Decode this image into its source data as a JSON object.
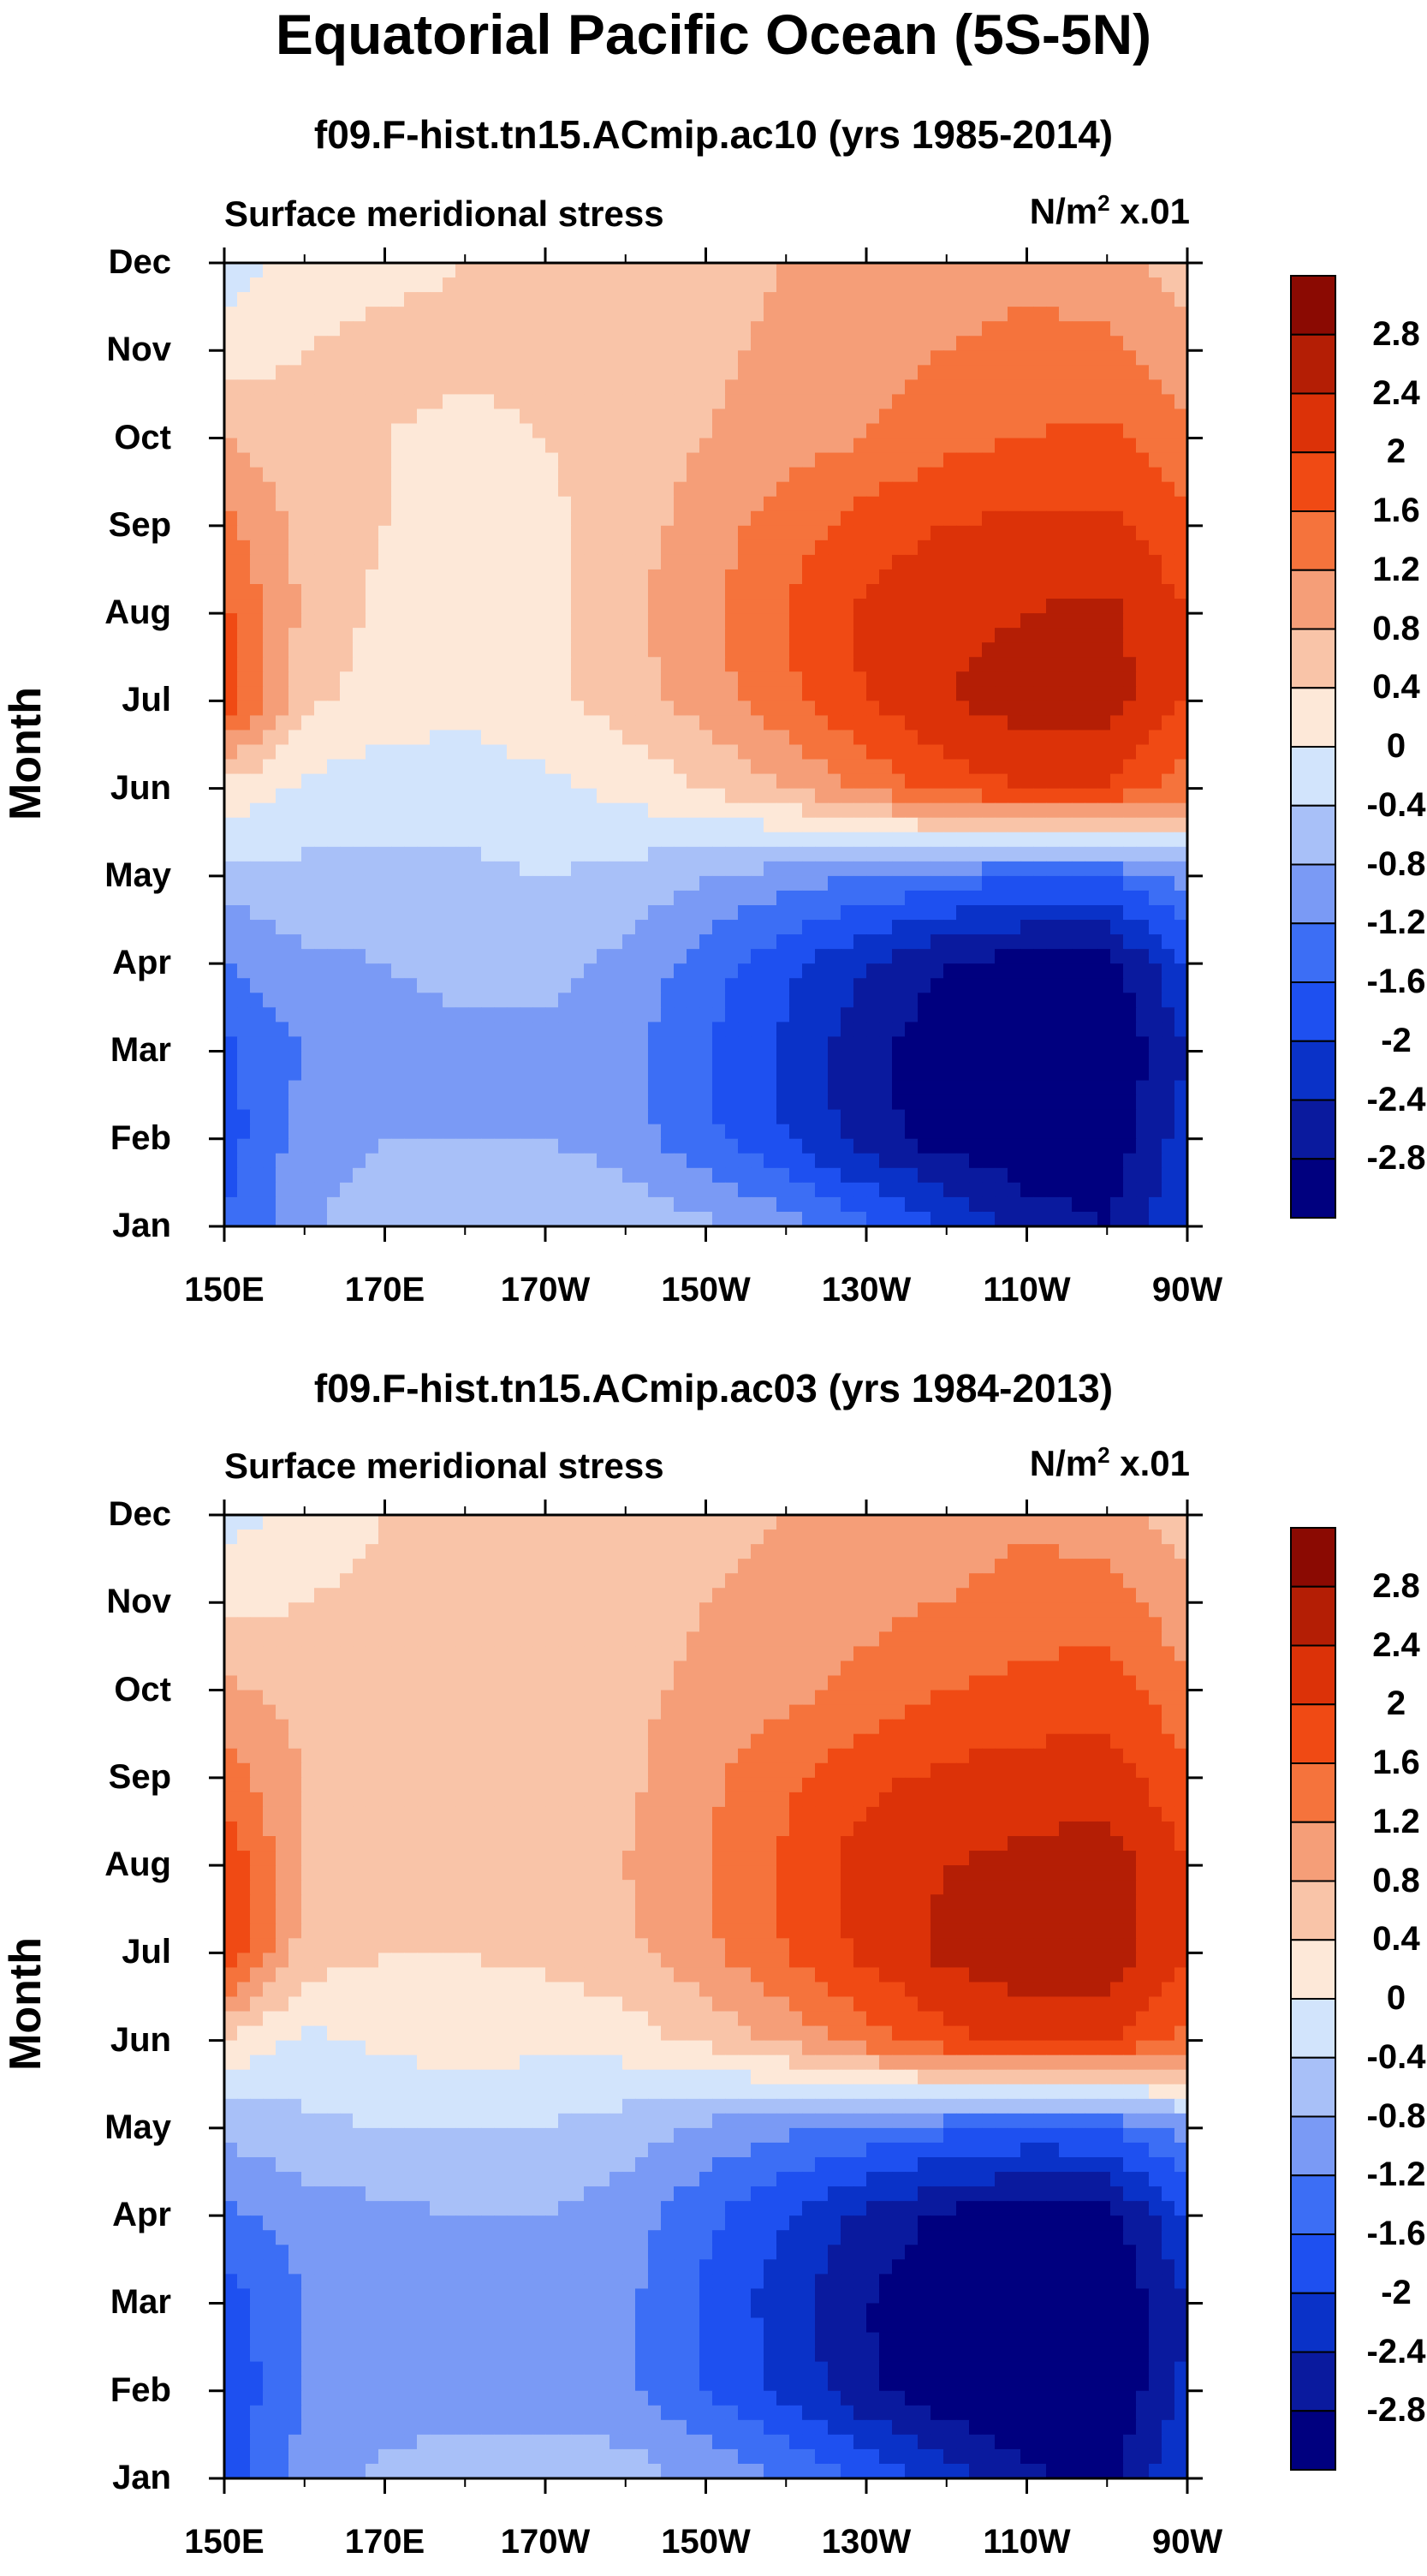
{
  "figure_title": "Equatorial Pacific Ocean (5S-5N)",
  "chart_data": [
    {
      "type": "heatmap",
      "title": "f09.F-hist.tn15.ACmip.ac10 (yrs 1985-2014)",
      "subtitle_left": "Surface meridional stress",
      "units": "N/m",
      "units_sup": "2",
      "units_suffix": " x.01",
      "ylabel": "Month",
      "y_ticks": [
        "Jan",
        "Feb",
        "Mar",
        "Apr",
        "May",
        "Jun",
        "Jul",
        "Aug",
        "Sep",
        "Oct",
        "Nov",
        "Dec"
      ],
      "x_ticks": [
        "150E",
        "170E",
        "170W",
        "150W",
        "130W",
        "110W",
        "90W"
      ],
      "x_range": [
        150,
        270
      ],
      "y_range": [
        1,
        12
      ],
      "colorbar_levels": [
        "2.8",
        "2.4",
        "2",
        "1.6",
        "1.2",
        "0.8",
        "0.4",
        "0",
        "-0.4",
        "-0.8",
        "-1.2",
        "-1.6",
        "-2",
        "-2.4",
        "-2.8"
      ],
      "field": {
        "lon": [
          150,
          160,
          170,
          180,
          190,
          200,
          210,
          220,
          230,
          240,
          250,
          260,
          270
        ],
        "month": [
          1,
          2,
          3,
          4,
          5,
          6,
          7,
          8,
          9,
          10,
          11,
          12
        ],
        "values": [
          [
            -1.6,
            -0.9,
            -0.5,
            -0.4,
            -0.4,
            -0.5,
            -0.7,
            -1.0,
            -1.5,
            -2.0,
            -2.6,
            -2.8,
            -2.0
          ],
          [
            -1.8,
            -1.0,
            -0.8,
            -0.8,
            -0.8,
            -1.0,
            -1.5,
            -2.0,
            -2.6,
            -3.0,
            -3.1,
            -3.1,
            -2.2
          ],
          [
            -1.7,
            -1.2,
            -0.9,
            -0.9,
            -0.9,
            -1.1,
            -1.6,
            -2.1,
            -2.7,
            -3.1,
            -3.2,
            -3.2,
            -2.4
          ],
          [
            -1.2,
            -0.9,
            -0.8,
            -0.7,
            -0.7,
            -0.9,
            -1.4,
            -1.9,
            -2.4,
            -2.8,
            -3.0,
            -3.0,
            -2.0
          ],
          [
            -0.6,
            -0.5,
            -0.5,
            -0.5,
            -0.4,
            -0.5,
            -0.8,
            -1.0,
            -1.2,
            -1.4,
            -1.6,
            -1.6,
            -1.0
          ],
          [
            0.3,
            -0.1,
            -0.2,
            -0.2,
            -0.1,
            0.1,
            0.4,
            0.8,
            1.3,
            1.8,
            2.0,
            2.0,
            1.4
          ],
          [
            1.9,
            0.5,
            0.2,
            0.1,
            0.3,
            0.6,
            1.0,
            1.5,
            2.0,
            2.4,
            2.6,
            2.6,
            2.0
          ],
          [
            1.7,
            0.7,
            0.3,
            0.2,
            0.3,
            0.7,
            1.1,
            1.6,
            2.1,
            2.3,
            2.4,
            2.5,
            2.0
          ],
          [
            1.3,
            0.7,
            0.4,
            0.2,
            0.3,
            0.6,
            1.0,
            1.4,
            1.8,
            2.0,
            2.1,
            2.1,
            1.7
          ],
          [
            0.8,
            0.5,
            0.4,
            0.3,
            0.4,
            0.6,
            0.8,
            1.0,
            1.2,
            1.5,
            1.6,
            1.7,
            1.3
          ],
          [
            0.2,
            0.4,
            0.5,
            0.5,
            0.5,
            0.6,
            0.7,
            0.9,
            1.0,
            1.2,
            1.3,
            1.3,
            0.9
          ],
          [
            -0.2,
            0.2,
            0.3,
            0.4,
            0.4,
            0.5,
            0.6,
            0.8,
            0.9,
            1.0,
            1.1,
            1.0,
            0.6
          ]
        ]
      }
    },
    {
      "type": "heatmap",
      "title": "f09.F-hist.tn15.ACmip.ac03 (yrs 1984-2013)",
      "subtitle_left": "Surface meridional stress",
      "units": "N/m",
      "units_sup": "2",
      "units_suffix": " x.01",
      "ylabel": "Month",
      "y_ticks": [
        "Jan",
        "Feb",
        "Mar",
        "Apr",
        "May",
        "Jun",
        "Jul",
        "Aug",
        "Sep",
        "Oct",
        "Nov",
        "Dec"
      ],
      "x_ticks": [
        "150E",
        "170E",
        "170W",
        "150W",
        "130W",
        "110W",
        "90W"
      ],
      "x_range": [
        150,
        270
      ],
      "y_range": [
        1,
        12
      ],
      "colorbar_levels": [
        "2.8",
        "2.4",
        "2",
        "1.6",
        "1.2",
        "0.8",
        "0.4",
        "0",
        "-0.4",
        "-0.8",
        "-1.2",
        "-1.6",
        "-2",
        "-2.4",
        "-2.8"
      ],
      "field": {
        "lon": [
          150,
          160,
          170,
          180,
          190,
          200,
          210,
          220,
          230,
          240,
          250,
          260,
          270
        ],
        "month": [
          1,
          2,
          3,
          4,
          5,
          6,
          7,
          8,
          9,
          10,
          11,
          12
        ],
        "values": [
          [
            -1.8,
            -1.0,
            -0.7,
            -0.6,
            -0.6,
            -0.6,
            -0.9,
            -1.2,
            -1.7,
            -2.2,
            -2.7,
            -2.9,
            -2.0
          ],
          [
            -1.9,
            -1.2,
            -1.0,
            -1.0,
            -1.0,
            -1.1,
            -1.6,
            -2.1,
            -2.7,
            -3.1,
            -3.2,
            -3.2,
            -2.3
          ],
          [
            -1.8,
            -1.2,
            -1.0,
            -1.0,
            -1.0,
            -1.1,
            -1.7,
            -2.2,
            -2.8,
            -3.1,
            -3.2,
            -3.2,
            -2.4
          ],
          [
            -1.3,
            -1.0,
            -0.9,
            -0.8,
            -0.8,
            -1.0,
            -1.5,
            -2.0,
            -2.5,
            -2.9,
            -3.0,
            -3.0,
            -2.0
          ],
          [
            -0.7,
            -0.5,
            -0.4,
            -0.4,
            -0.4,
            -0.6,
            -0.9,
            -1.1,
            -1.3,
            -1.5,
            -1.7,
            -1.6,
            -1.0
          ],
          [
            0.4,
            -0.1,
            0.1,
            0.2,
            0.1,
            0.2,
            0.5,
            0.9,
            1.4,
            1.9,
            2.1,
            2.1,
            1.5
          ],
          [
            2.0,
            0.6,
            0.4,
            0.4,
            0.5,
            0.7,
            1.1,
            1.6,
            2.1,
            2.5,
            2.7,
            2.7,
            2.0
          ],
          [
            1.9,
            0.8,
            0.5,
            0.6,
            0.6,
            0.8,
            1.2,
            1.7,
            2.2,
            2.4,
            2.5,
            2.6,
            2.0
          ],
          [
            1.4,
            0.8,
            0.5,
            0.5,
            0.5,
            0.7,
            1.1,
            1.5,
            1.9,
            2.1,
            2.2,
            2.2,
            1.7
          ],
          [
            0.9,
            0.6,
            0.5,
            0.4,
            0.5,
            0.7,
            0.9,
            1.1,
            1.3,
            1.6,
            1.7,
            1.8,
            1.3
          ],
          [
            0.3,
            0.4,
            0.5,
            0.5,
            0.5,
            0.6,
            0.8,
            0.9,
            1.1,
            1.2,
            1.4,
            1.4,
            0.9
          ],
          [
            -0.2,
            0.2,
            0.4,
            0.4,
            0.4,
            0.5,
            0.7,
            0.8,
            0.9,
            1.0,
            1.1,
            1.0,
            0.6
          ]
        ]
      }
    }
  ],
  "palette": [
    "#00007f",
    "#0a1a9e",
    "#0a32c8",
    "#1e50f0",
    "#3c6ef5",
    "#7a9af5",
    "#a8c0f8",
    "#d2e4fc",
    "#fde8d8",
    "#f9c4a8",
    "#f59e78",
    "#f5733c",
    "#f04a14",
    "#dc3208",
    "#b41e05",
    "#8b0a02"
  ]
}
